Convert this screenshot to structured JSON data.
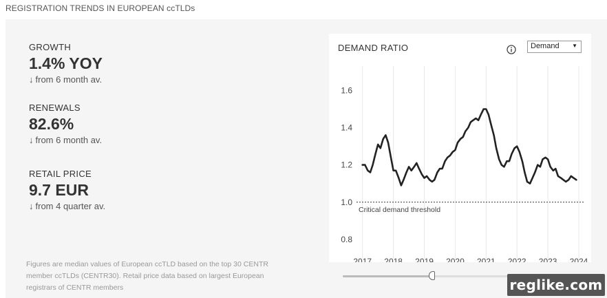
{
  "page": {
    "title": "REGISTRATION TRENDS IN EUROPEAN ccTLDs"
  },
  "metrics": [
    {
      "label": "GROWTH",
      "value": "1.4% YOY",
      "arrow": "↓",
      "sub": "from 6 month av."
    },
    {
      "label": "RENEWALS",
      "value": "82.6%",
      "arrow": "↓",
      "sub": "from 6 month av."
    },
    {
      "label": "RETAIL PRICE",
      "value": "9.7 EUR",
      "arrow": "↓",
      "sub": "from 4 quarter av."
    }
  ],
  "footnote": "Figures are median values of European ccTLD based on the top 30 CENTR member ccTLDs (CENTR30). Retail price data based on largest European registrars of CENTR members",
  "chart": {
    "title": "DEMAND RATIO",
    "info_icon": "info-icon",
    "dropdown": {
      "selected": "Demand"
    }
  },
  "chart_data": {
    "type": "line",
    "title": "DEMAND RATIO",
    "xlabel": "",
    "ylabel": "",
    "xlim": [
      2016.85,
      2024.2
    ],
    "ylim": [
      0.77,
      1.62
    ],
    "yticks": [
      0.8,
      1.0,
      1.2,
      1.4,
      1.6
    ],
    "ytick_labels": [
      "0.8",
      "1.0",
      "1.2",
      "1.4",
      "1.6"
    ],
    "xticks": [
      2017,
      2018,
      2019,
      2020,
      2021,
      2022,
      2023,
      2024
    ],
    "xtick_labels": [
      "2017",
      "2018",
      "2019",
      "2020",
      "2021",
      "2022",
      "2023",
      "2024"
    ],
    "grid": "vertical",
    "line_color": "#222222",
    "threshold": {
      "value": 1.0,
      "label": "Critical demand threshold"
    },
    "series": [
      {
        "x": [
          2017.0,
          2017.08,
          2017.17,
          2017.25,
          2017.33,
          2017.42,
          2017.5,
          2017.58,
          2017.67,
          2017.75,
          2017.83,
          2017.92,
          2018.0,
          2018.08,
          2018.17,
          2018.25,
          2018.33,
          2018.42,
          2018.5,
          2018.58,
          2018.67,
          2018.75,
          2018.83,
          2018.92,
          2019.0,
          2019.08,
          2019.17,
          2019.25,
          2019.33,
          2019.42,
          2019.5,
          2019.58,
          2019.67,
          2019.75,
          2019.83,
          2019.92,
          2020.0,
          2020.08,
          2020.17,
          2020.25,
          2020.33,
          2020.42,
          2020.5,
          2020.58,
          2020.67,
          2020.75,
          2020.83,
          2020.92,
          2021.0,
          2021.08,
          2021.17,
          2021.25,
          2021.33,
          2021.42,
          2021.5,
          2021.58,
          2021.67,
          2021.75,
          2021.83,
          2021.92,
          2022.0,
          2022.08,
          2022.17,
          2022.25,
          2022.33,
          2022.42,
          2022.5,
          2022.58,
          2022.67,
          2022.75,
          2022.83,
          2022.92,
          2023.0,
          2023.08,
          2023.17,
          2023.25,
          2023.33,
          2023.42,
          2023.5,
          2023.58,
          2023.67,
          2023.75,
          2023.83,
          2023.92
        ],
        "y": [
          1.2,
          1.2,
          1.17,
          1.16,
          1.2,
          1.26,
          1.31,
          1.29,
          1.34,
          1.36,
          1.32,
          1.24,
          1.17,
          1.17,
          1.13,
          1.09,
          1.12,
          1.16,
          1.19,
          1.17,
          1.19,
          1.21,
          1.18,
          1.15,
          1.13,
          1.14,
          1.12,
          1.11,
          1.12,
          1.16,
          1.18,
          1.18,
          1.22,
          1.24,
          1.25,
          1.27,
          1.28,
          1.32,
          1.34,
          1.35,
          1.38,
          1.4,
          1.43,
          1.44,
          1.45,
          1.44,
          1.47,
          1.5,
          1.5,
          1.47,
          1.41,
          1.36,
          1.29,
          1.23,
          1.2,
          1.19,
          1.22,
          1.22,
          1.26,
          1.29,
          1.3,
          1.27,
          1.22,
          1.16,
          1.11,
          1.1,
          1.13,
          1.16,
          1.2,
          1.19,
          1.23,
          1.24,
          1.23,
          1.19,
          1.17,
          1.18,
          1.14,
          1.13,
          1.12,
          1.11,
          1.12,
          1.14,
          1.13,
          1.12
        ]
      }
    ]
  },
  "slider": {
    "position": 0.42
  },
  "watermark": "reglike.com"
}
